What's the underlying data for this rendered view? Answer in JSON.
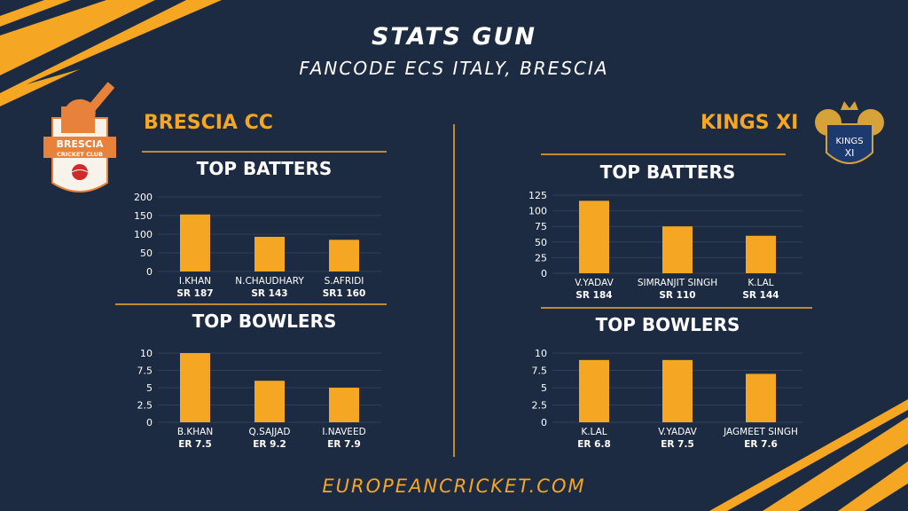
{
  "header": {
    "title": "STATS GUN",
    "subtitle": "FANCODE ECS ITALY, BRESCIA"
  },
  "footer": {
    "site": "EUROPEANCRICKET.COM"
  },
  "colors": {
    "background": "#1c2b41",
    "accent": "#f5a623",
    "rule": "#c08a2e",
    "text": "#ffffff"
  },
  "teams": [
    {
      "name": "BRESCIA CC",
      "logo": {
        "text_top": "BRESCIA",
        "text_bottom": "CRICKET CLUB"
      },
      "batters_title": "TOP BATTERS",
      "bowlers_title": "TOP BOWLERS"
    },
    {
      "name": "KINGS XI",
      "logo": {
        "text_top": "KINGS",
        "text_bottom": "XI"
      },
      "batters_title": "TOP BATTERS",
      "bowlers_title": "TOP BOWLERS"
    }
  ],
  "chart_data": [
    {
      "type": "bar",
      "title": "TOP BATTERS",
      "team": "BRESCIA CC",
      "categories": [
        "I.KHAN",
        "N.CHAUDHARY",
        "S.AFRIDI"
      ],
      "values": [
        153,
        93,
        85
      ],
      "sublabels": [
        "SR 187",
        "SR 143",
        "SR1 160"
      ],
      "ylim": [
        0,
        200
      ],
      "yticks": [
        0,
        50,
        100,
        150,
        200
      ],
      "grid": true
    },
    {
      "type": "bar",
      "title": "TOP BOWLERS",
      "team": "BRESCIA CC",
      "categories": [
        "B.KHAN",
        "Q.SAJJAD",
        "I.NAVEED"
      ],
      "values": [
        10,
        6,
        5
      ],
      "sublabels": [
        "ER 7.5",
        "ER 9.2",
        "ER 7.9"
      ],
      "ylim": [
        0,
        10
      ],
      "yticks": [
        0,
        2.5,
        5,
        7.5,
        10
      ],
      "grid": true
    },
    {
      "type": "bar",
      "title": "TOP BATTERS",
      "team": "KINGS XI",
      "categories": [
        "V.YADAV",
        "SIMRANJIT SINGH",
        "K.LAL"
      ],
      "values": [
        116,
        75,
        60
      ],
      "sublabels": [
        "SR 184",
        "SR 110",
        "SR 144"
      ],
      "ylim": [
        0,
        125
      ],
      "yticks": [
        0,
        25,
        50,
        75,
        100,
        125
      ],
      "grid": true
    },
    {
      "type": "bar",
      "title": "TOP BOWLERS",
      "team": "KINGS XI",
      "categories": [
        "K.LAL",
        "V.YADAV",
        "JAGMEET SINGH"
      ],
      "values": [
        9,
        9,
        7
      ],
      "sublabels": [
        "ER 6.8",
        "ER 7.5",
        "ER 7.6"
      ],
      "ylim": [
        0,
        10
      ],
      "yticks": [
        0,
        2.5,
        5,
        7.5,
        10
      ],
      "grid": true
    }
  ]
}
